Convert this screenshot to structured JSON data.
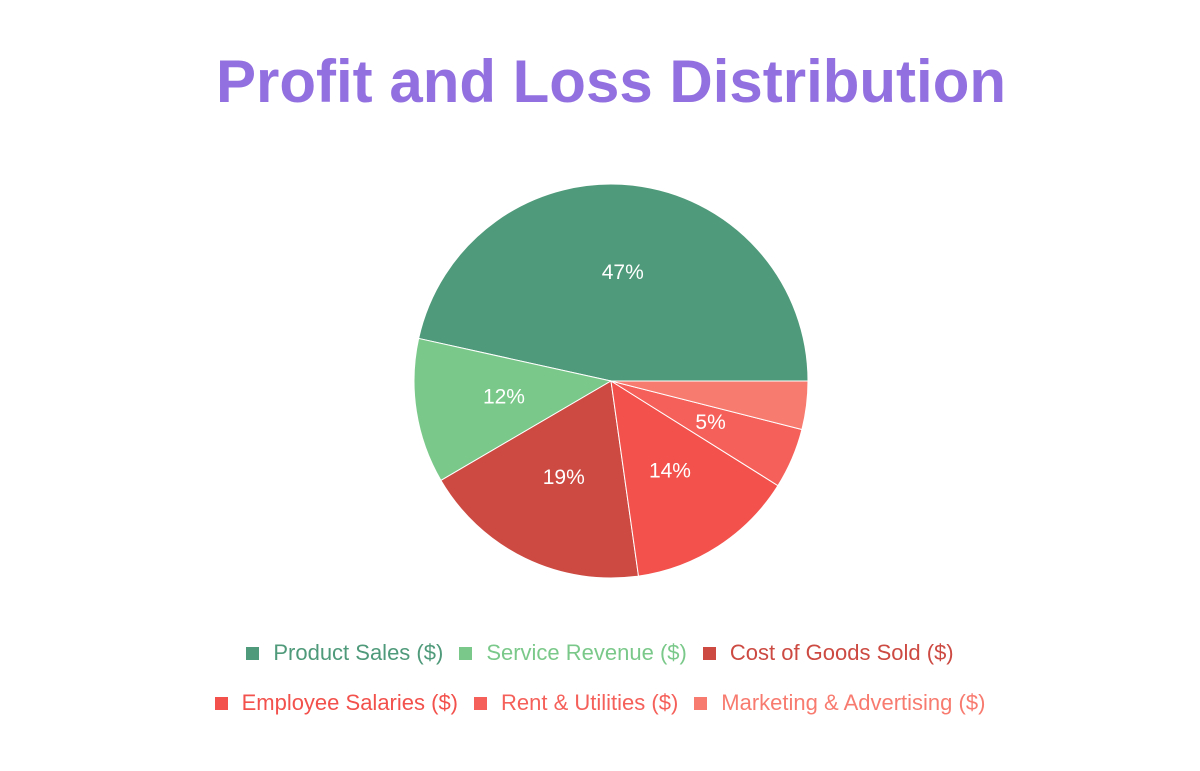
{
  "chart_data": {
    "type": "pie",
    "title": "Profit and Loss Distribution",
    "categories": [
      "Product Sales ($)",
      "Service Revenue ($)",
      "Cost of Goods Sold ($)",
      "Employee Salaries ($)",
      "Rent & Utilities ($)",
      "Marketing & Advertising ($)"
    ],
    "values": [
      47,
      12,
      19,
      14,
      5,
      4
    ],
    "value_labels": [
      "47%",
      "12%",
      "19%",
      "14%",
      "5%",
      null
    ],
    "colors": [
      "#4f9a7a",
      "#7bc98a",
      "#cc4a42",
      "#f2514c",
      "#f5605a",
      "#f87b70"
    ],
    "legend": "bottom"
  }
}
